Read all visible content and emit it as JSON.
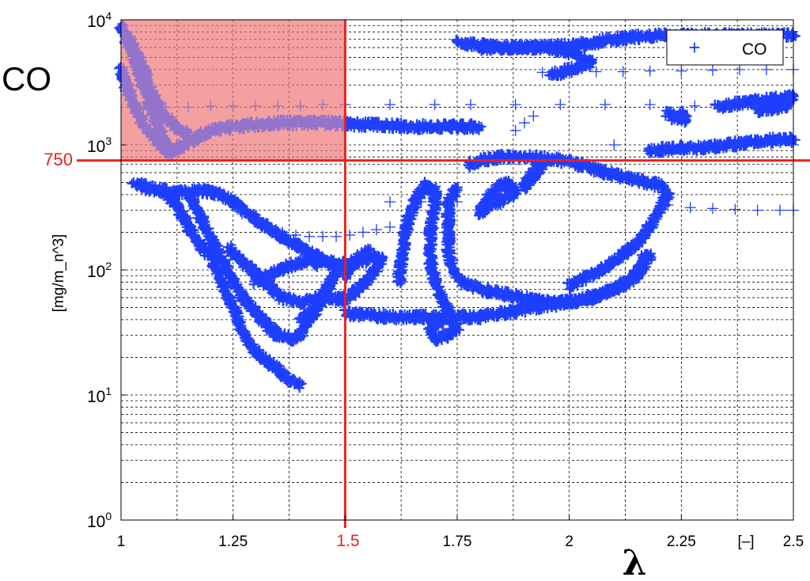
{
  "chart_data": {
    "type": "scatter",
    "title": "",
    "ylabel_big": "CO",
    "ylabel": "[mg/m_n^3]",
    "xlabel": "λ",
    "x_unit_label": "[–]",
    "x_scale": "linear",
    "y_scale": "log",
    "xlim": [
      1,
      2.5
    ],
    "ylim": [
      1,
      10000
    ],
    "grid": true,
    "grid_style": "dashed",
    "x_ticks": [
      1,
      1.25,
      1.5,
      1.75,
      2,
      2.25,
      2.5
    ],
    "x_tick_labels": [
      "1",
      "1.25",
      "1.5",
      "1.75",
      "2",
      "2.25",
      "2.5"
    ],
    "y_ticks": [
      1,
      10,
      100,
      1000,
      10000
    ],
    "y_tick_bases": [
      "10",
      "10",
      "10",
      "10",
      "10"
    ],
    "y_tick_exponents": [
      "0",
      "1",
      "2",
      "3",
      "4"
    ],
    "legend": {
      "entries": [
        "CO"
      ],
      "marker": "+",
      "placement": "top-right"
    },
    "threshold_y": 750,
    "threshold_y_label": "750",
    "threshold_x": 1.5,
    "threshold_x_label": "1.5",
    "highlight_region": {
      "x": [
        1,
        1.5
      ],
      "y": [
        750,
        10000
      ]
    },
    "colors": {
      "series": "#1f3fff",
      "threshold": "#e82020",
      "highlight_fill": "#f4a0a0",
      "overlap": "#7a2ab0",
      "axis": "#000000",
      "grid": "#000000"
    },
    "series": [
      {
        "name": "CO",
        "marker": "+",
        "color": "#1f3fff",
        "sparse_traces": [
          [
            [
              1.05,
              2000
            ],
            [
              1.1,
              2000
            ],
            [
              1.15,
              2000
            ],
            [
              1.2,
              2050
            ],
            [
              1.25,
              2050
            ],
            [
              1.3,
              2050
            ],
            [
              1.35,
              2050
            ],
            [
              1.4,
              2050
            ],
            [
              1.45,
              2100
            ],
            [
              1.5,
              2100
            ],
            [
              1.6,
              2100
            ],
            [
              1.7,
              2100
            ],
            [
              1.78,
              2100
            ],
            [
              1.88,
              2100
            ],
            [
              1.98,
              2100
            ],
            [
              2.08,
              2100
            ],
            [
              2.18,
              2100
            ],
            [
              2.28,
              2050
            ],
            [
              2.38,
              2100
            ]
          ],
          [
            [
              1.88,
              1300
            ],
            [
              1.9,
              1500
            ],
            [
              1.92,
              1700
            ]
          ],
          [
            [
              1.6,
              350
            ],
            [
              1.67,
              350
            ],
            [
              1.7,
              350
            ],
            [
              1.75,
              350
            ]
          ],
          [
            [
              1.27,
              280
            ],
            [
              1.3,
              240
            ],
            [
              1.33,
              215
            ],
            [
              1.36,
              200
            ],
            [
              1.39,
              190
            ],
            [
              1.42,
              185
            ],
            [
              1.45,
              185
            ],
            [
              1.48,
              185
            ],
            [
              1.51,
              190
            ],
            [
              1.54,
              200
            ],
            [
              1.57,
              210
            ],
            [
              1.6,
              220
            ]
          ],
          [
            [
              2.22,
              330
            ],
            [
              2.27,
              315
            ],
            [
              2.32,
              310
            ],
            [
              2.37,
              305
            ],
            [
              2.42,
              300
            ],
            [
              2.47,
              300
            ],
            [
              2.5,
              300
            ]
          ],
          [
            [
              1.94,
              3800
            ],
            [
              2.0,
              3800
            ],
            [
              2.06,
              3850
            ],
            [
              2.12,
              3850
            ],
            [
              2.18,
              3900
            ],
            [
              2.25,
              3900
            ],
            [
              2.32,
              3950
            ],
            [
              2.38,
              4000
            ],
            [
              2.44,
              4000
            ],
            [
              2.5,
              4000
            ]
          ],
          [
            [
              2.1,
              1000
            ],
            [
              2.25,
              1000
            ],
            [
              2.37,
              1000
            ],
            [
              2.45,
              1000
            ],
            [
              2.5,
              1000
            ]
          ]
        ],
        "dense_traces": [
          [
            [
              1.0,
              9000
            ],
            [
              1.03,
              5000
            ],
            [
              1.05,
              3000
            ],
            [
              1.08,
              1500
            ],
            [
              1.1,
              1000
            ],
            [
              1.12,
              900
            ],
            [
              1.16,
              1100
            ],
            [
              1.2,
              1300
            ],
            [
              1.25,
              1400
            ],
            [
              1.35,
              1500
            ],
            [
              1.45,
              1500
            ],
            [
              1.55,
              1450
            ],
            [
              1.65,
              1400
            ],
            [
              1.75,
              1400
            ],
            [
              1.8,
              1400
            ]
          ],
          [
            [
              1.02,
              7000
            ],
            [
              1.05,
              4000
            ],
            [
              1.07,
              2500
            ],
            [
              1.09,
              1800
            ],
            [
              1.12,
              1400
            ],
            [
              1.15,
              1200
            ]
          ],
          [
            [
              1.0,
              4000
            ],
            [
              1.02,
              2500
            ],
            [
              1.04,
              1700
            ],
            [
              1.06,
              1300
            ],
            [
              1.09,
              1000
            ],
            [
              1.11,
              850
            ]
          ],
          [
            [
              1.03,
              500
            ],
            [
              1.06,
              450
            ],
            [
              1.09,
              430
            ],
            [
              1.12,
              420
            ],
            [
              1.15,
              420
            ],
            [
              1.19,
              430
            ],
            [
              1.22,
              400
            ],
            [
              1.25,
              350
            ],
            [
              1.28,
              290
            ],
            [
              1.31,
              240
            ],
            [
              1.35,
              190
            ],
            [
              1.39,
              160
            ],
            [
              1.42,
              140
            ],
            [
              1.45,
              120
            ],
            [
              1.48,
              110
            ],
            [
              1.52,
              115
            ],
            [
              1.55,
              120
            ]
          ],
          [
            [
              1.1,
              400
            ],
            [
              1.12,
              350
            ],
            [
              1.13,
              300
            ],
            [
              1.15,
              220
            ],
            [
              1.17,
              170
            ],
            [
              1.2,
              130
            ],
            [
              1.22,
              90
            ],
            [
              1.24,
              60
            ],
            [
              1.26,
              40
            ],
            [
              1.28,
              28
            ],
            [
              1.3,
              22
            ],
            [
              1.33,
              18
            ],
            [
              1.36,
              15
            ],
            [
              1.38,
              13
            ],
            [
              1.4,
              12
            ]
          ],
          [
            [
              1.15,
              420
            ],
            [
              1.17,
              300
            ],
            [
              1.2,
              180
            ],
            [
              1.23,
              110
            ],
            [
              1.26,
              70
            ],
            [
              1.29,
              50
            ],
            [
              1.32,
              38
            ],
            [
              1.35,
              30
            ],
            [
              1.38,
              28
            ],
            [
              1.4,
              30
            ],
            [
              1.43,
              45
            ],
            [
              1.46,
              70
            ],
            [
              1.48,
              100
            ],
            [
              1.46,
              70
            ],
            [
              1.43,
              48
            ],
            [
              1.4,
              40
            ]
          ],
          [
            [
              1.24,
              150
            ],
            [
              1.28,
              110
            ],
            [
              1.32,
              80
            ],
            [
              1.36,
              60
            ],
            [
              1.4,
              55
            ],
            [
              1.44,
              60
            ],
            [
              1.48,
              60
            ],
            [
              1.5,
              55
            ]
          ],
          [
            [
              1.3,
              80
            ],
            [
              1.34,
              95
            ],
            [
              1.38,
              110
            ],
            [
              1.42,
              120
            ],
            [
              1.44,
              110
            ]
          ],
          [
            [
              1.5,
              60
            ],
            [
              1.53,
              70
            ],
            [
              1.56,
              90
            ],
            [
              1.58,
              120
            ],
            [
              1.55,
              140
            ],
            [
              1.52,
              120
            ],
            [
              1.5,
              90
            ]
          ],
          [
            [
              1.5,
              45
            ],
            [
              1.6,
              42
            ],
            [
              1.7,
              42
            ],
            [
              1.8,
              42
            ],
            [
              1.85,
              45
            ],
            [
              1.95,
              52
            ],
            [
              2.05,
              60
            ],
            [
              2.12,
              75
            ],
            [
              2.16,
              100
            ],
            [
              2.18,
              130
            ]
          ],
          [
            [
              1.62,
              80
            ],
            [
              1.63,
              150
            ],
            [
              1.64,
              250
            ],
            [
              1.66,
              380
            ],
            [
              1.68,
              480
            ],
            [
              1.7,
              430
            ],
            [
              1.7,
              330
            ],
            [
              1.69,
              200
            ],
            [
              1.69,
              120
            ],
            [
              1.7,
              80
            ],
            [
              1.72,
              55
            ],
            [
              1.74,
              40
            ],
            [
              1.75,
              35
            ],
            [
              1.73,
              30
            ],
            [
              1.7,
              28
            ],
            [
              1.69,
              35
            ],
            [
              1.72,
              40
            ]
          ],
          [
            [
              1.75,
              450
            ],
            [
              1.73,
              350
            ],
            [
              1.73,
              220
            ],
            [
              1.73,
              140
            ],
            [
              1.74,
              100
            ],
            [
              1.76,
              80
            ],
            [
              1.8,
              70
            ],
            [
              1.85,
              65
            ],
            [
              1.9,
              60
            ],
            [
              1.95,
              55
            ],
            [
              2.0,
              55
            ],
            [
              2.05,
              60
            ],
            [
              2.1,
              70
            ],
            [
              2.15,
              90
            ],
            [
              2.17,
              130
            ]
          ],
          [
            [
              1.78,
              700
            ],
            [
              1.8,
              750
            ],
            [
              1.85,
              800
            ],
            [
              1.9,
              800
            ],
            [
              1.95,
              780
            ],
            [
              2.0,
              720
            ],
            [
              2.05,
              650
            ],
            [
              2.1,
              580
            ],
            [
              2.15,
              520
            ],
            [
              2.2,
              480
            ],
            [
              2.22,
              400
            ],
            [
              2.2,
              300
            ],
            [
              2.18,
              220
            ],
            [
              2.15,
              160
            ],
            [
              2.1,
              120
            ],
            [
              2.05,
              90
            ],
            [
              2.0,
              75
            ]
          ],
          [
            [
              1.8,
              300
            ],
            [
              1.82,
              380
            ],
            [
              1.84,
              450
            ],
            [
              1.86,
              500
            ],
            [
              1.88,
              420
            ],
            [
              1.85,
              360
            ],
            [
              1.82,
              330
            ],
            [
              1.8,
              280
            ]
          ],
          [
            [
              1.9,
              450
            ],
            [
              1.92,
              600
            ],
            [
              1.94,
              700
            ],
            [
              1.92,
              550
            ],
            [
              1.9,
              500
            ]
          ],
          [
            [
              1.8,
              6000
            ],
            [
              1.9,
              6000
            ],
            [
              2.0,
              6200
            ],
            [
              2.05,
              6500
            ],
            [
              2.1,
              7000
            ],
            [
              2.2,
              7500
            ],
            [
              2.3,
              7500
            ],
            [
              2.4,
              7500
            ],
            [
              2.5,
              7500
            ]
          ],
          [
            [
              1.75,
              6500
            ],
            [
              1.85,
              6000
            ],
            [
              1.95,
              6000
            ],
            [
              2.0,
              5500
            ],
            [
              2.05,
              4500
            ],
            [
              2.0,
              4000
            ],
            [
              1.96,
              3600
            ]
          ],
          [
            [
              2.33,
              2000
            ],
            [
              2.4,
              2200
            ],
            [
              2.45,
              2300
            ],
            [
              2.5,
              2400
            ],
            [
              2.48,
              2000
            ],
            [
              2.42,
              1900
            ]
          ],
          [
            [
              2.22,
              1800
            ],
            [
              2.24,
              1600
            ],
            [
              2.26,
              1600
            ],
            [
              2.25,
              1800
            ]
          ],
          [
            [
              2.18,
              900
            ],
            [
              2.25,
              950
            ],
            [
              2.3,
              950
            ],
            [
              2.35,
              1000
            ],
            [
              2.42,
              1050
            ],
            [
              2.46,
              1100
            ],
            [
              2.5,
              1100
            ]
          ]
        ]
      }
    ]
  }
}
